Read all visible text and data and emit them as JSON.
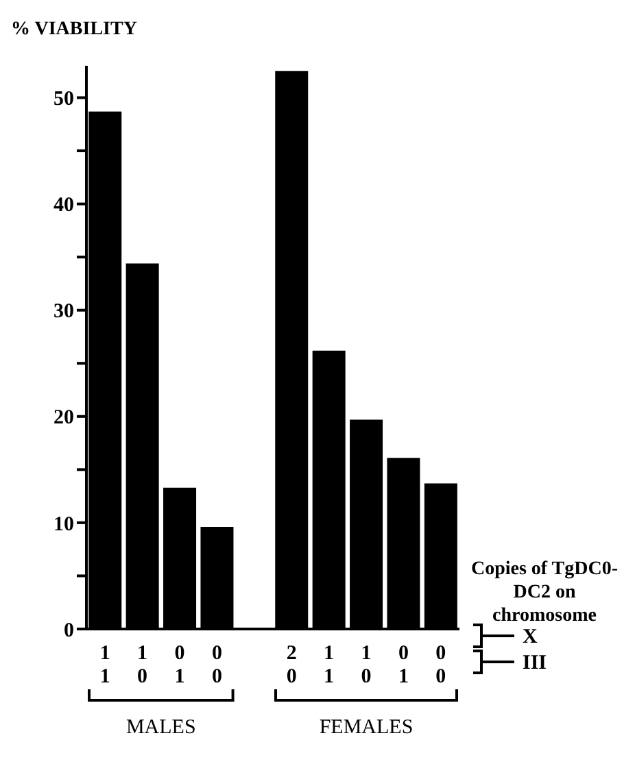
{
  "chart_data": {
    "type": "bar",
    "ylabel": "% VIABILITY",
    "categories": [
      "1\n1",
      "1\n0",
      "0\n1",
      "0\n0",
      null,
      "2\n0",
      "1\n1",
      "1\n0",
      "0\n1",
      "0\n0"
    ],
    "values": [
      48.7,
      34.4,
      13.3,
      9.6,
      null,
      52.5,
      26.2,
      19.7,
      16.1,
      13.7
    ],
    "color": "#000000",
    "ylim": [
      0,
      53
    ],
    "yticks": [
      0,
      {
        "value": 5,
        "label": null
      },
      10,
      {
        "value": 15,
        "label": null
      },
      20,
      {
        "value": 25,
        "label": null
      },
      30,
      {
        "value": 35,
        "label": null
      },
      40,
      {
        "value": 45,
        "label": null
      },
      50
    ],
    "annotations": [
      "Copies of TgDC0-DC2 on chromosome",
      "X",
      "III",
      "MALES",
      "FEMALES"
    ]
  }
}
